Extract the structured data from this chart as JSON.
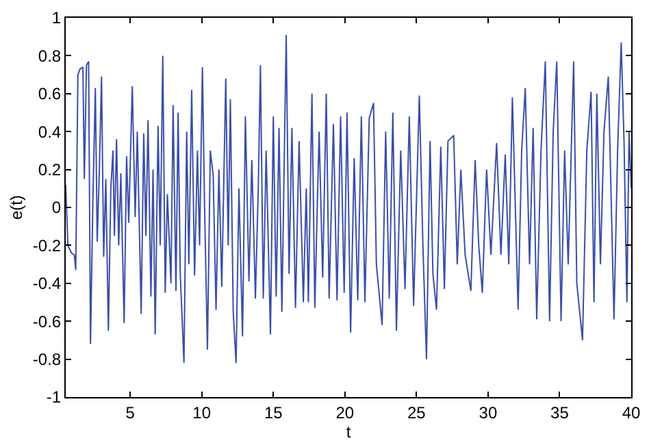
{
  "chart_data": {
    "type": "line",
    "xlabel": "t",
    "ylabel": "e(t)",
    "xlim": [
      0.5,
      40
    ],
    "xticks": [
      5,
      10,
      15,
      20,
      25,
      30,
      35,
      40
    ],
    "ylim": [
      -1,
      1
    ],
    "yticks": [
      -1,
      -0.8,
      -0.6,
      -0.4,
      -0.2,
      0,
      0.2,
      0.4,
      0.6,
      0.8,
      1
    ],
    "marker": "none",
    "line_style": "solid",
    "series": [
      {
        "color": "#3a4fa8",
        "x": [
          0.5,
          0.65,
          0.9,
          1.1,
          1.2,
          1.35,
          1.5,
          1.7,
          1.8,
          1.95,
          2.1,
          2.23,
          2.4,
          2.57,
          2.7,
          2.85,
          3.0,
          3.15,
          3.3,
          3.48,
          3.65,
          3.8,
          3.9,
          4.05,
          4.2,
          4.35,
          4.58,
          4.75,
          4.9,
          5.15,
          5.35,
          5.5,
          5.77,
          5.95,
          6.1,
          6.25,
          6.45,
          6.6,
          6.75,
          6.95,
          7.1,
          7.28,
          7.45,
          7.6,
          7.85,
          8.0,
          8.2,
          8.35,
          8.5,
          8.76,
          8.95,
          9.1,
          9.3,
          9.5,
          9.7,
          9.85,
          10.05,
          10.2,
          10.4,
          10.6,
          10.8,
          11.0,
          11.2,
          11.4,
          11.68,
          11.85,
          12.0,
          12.2,
          12.4,
          12.6,
          12.85,
          13.05,
          13.3,
          13.5,
          13.75,
          13.95,
          14.1,
          14.3,
          14.5,
          14.8,
          15.0,
          15.2,
          15.4,
          15.6,
          15.9,
          16.1,
          16.3,
          16.55,
          16.8,
          17.1,
          17.3,
          17.45,
          17.7,
          17.9,
          18.2,
          18.45,
          18.7,
          18.9,
          19.2,
          19.45,
          19.7,
          19.95,
          20.15,
          20.4,
          20.65,
          20.9,
          21.15,
          21.4,
          21.7,
          22.0,
          22.2,
          22.6,
          22.85,
          23.1,
          23.35,
          23.6,
          23.9,
          24.2,
          24.5,
          24.8,
          25.2,
          25.45,
          25.7,
          25.95,
          26.15,
          26.4,
          26.7,
          26.95,
          27.2,
          27.6,
          27.85,
          28.1,
          28.4,
          28.8,
          29.1,
          29.35,
          29.6,
          29.9,
          30.2,
          30.6,
          30.9,
          31.2,
          31.45,
          31.7,
          32.1,
          32.35,
          32.6,
          32.9,
          33.15,
          33.4,
          33.7,
          34.0,
          34.3,
          34.55,
          34.8,
          35.1,
          35.35,
          35.6,
          35.98,
          36.2,
          36.6,
          36.9,
          37.2,
          37.4,
          37.6,
          37.85,
          38.1,
          38.4,
          38.8,
          39.05,
          39.3,
          39.5,
          39.7,
          39.85,
          40.0
        ],
        "values": [
          0.12,
          -0.2,
          -0.24,
          -0.25,
          -0.33,
          0.7,
          0.73,
          0.74,
          0.15,
          0.75,
          0.77,
          -0.72,
          0.05,
          0.63,
          -0.18,
          0.2,
          0.69,
          -0.26,
          0.15,
          -0.65,
          0.1,
          0.3,
          -0.15,
          0.36,
          -0.2,
          0.18,
          -0.61,
          0.27,
          -0.08,
          0.64,
          -0.05,
          0.4,
          -0.56,
          0.39,
          -0.15,
          0.46,
          -0.47,
          0.2,
          -0.67,
          0.43,
          -0.2,
          0.8,
          -0.45,
          0.07,
          -0.4,
          0.54,
          -0.44,
          0.5,
          -0.35,
          -0.82,
          0.4,
          -0.3,
          0.62,
          -0.36,
          0.3,
          -0.2,
          0.74,
          0.0,
          -0.75,
          0.3,
          0.17,
          -0.54,
          0.2,
          -0.42,
          0.68,
          -0.2,
          0.57,
          -0.55,
          -0.82,
          0.1,
          -0.68,
          0.48,
          -0.39,
          0.25,
          -0.48,
          0.1,
          0.75,
          -0.48,
          0.3,
          -0.67,
          0.48,
          -0.47,
          0.42,
          -0.55,
          0.91,
          -0.35,
          0.42,
          -0.53,
          0.35,
          -0.5,
          0.1,
          -0.5,
          0.6,
          -0.53,
          0.4,
          -0.37,
          0.6,
          -0.48,
          0.44,
          -0.49,
          0.48,
          -0.45,
          0.5,
          -0.66,
          0.26,
          -0.49,
          0.48,
          -0.5,
          0.47,
          0.55,
          -0.3,
          -0.62,
          0.4,
          -0.48,
          0.5,
          -0.65,
          0.3,
          -0.43,
          0.48,
          -0.52,
          0.59,
          -0.2,
          -0.8,
          0.35,
          -0.35,
          -0.54,
          0.32,
          -0.43,
          0.35,
          0.38,
          -0.3,
          0.2,
          -0.25,
          -0.44,
          0.25,
          -0.2,
          -0.45,
          0.2,
          -0.25,
          0.34,
          -0.25,
          0.28,
          -0.3,
          0.58,
          -0.54,
          0.3,
          0.63,
          -0.3,
          0.42,
          -0.59,
          0.3,
          0.77,
          -0.6,
          0.4,
          0.77,
          -0.6,
          0.3,
          -0.3,
          0.77,
          -0.4,
          -0.7,
          0.3,
          0.61,
          -0.5,
          0.6,
          -0.3,
          0.4,
          0.69,
          -0.59,
          0.3,
          0.87,
          0.35,
          -0.5,
          0.4,
          0.1
        ]
      }
    ]
  }
}
